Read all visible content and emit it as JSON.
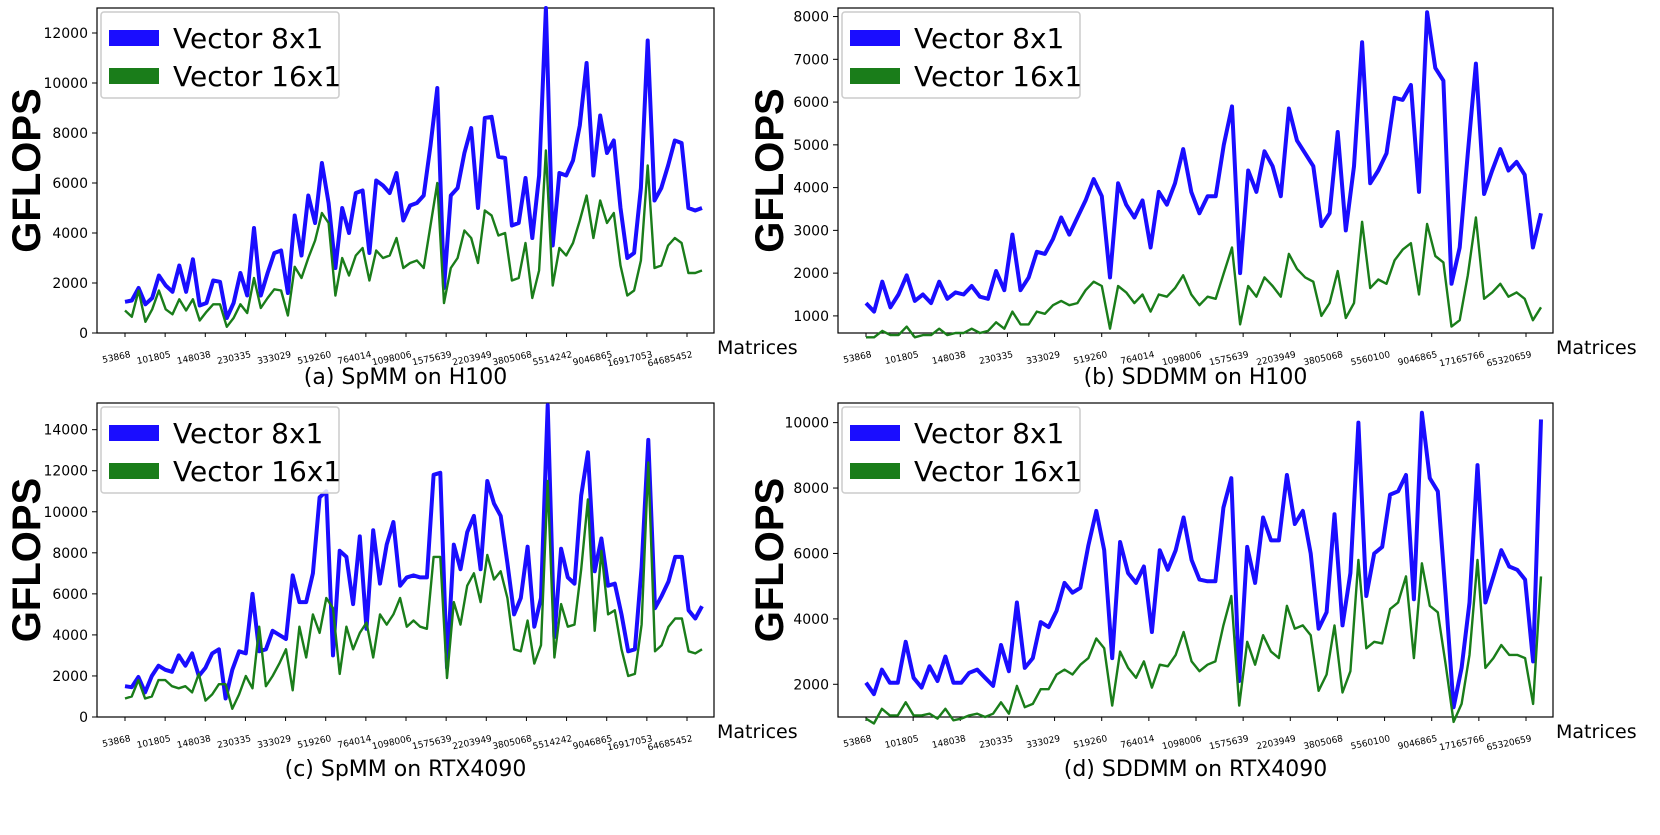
{
  "figure": {
    "ylabel": "GFLOPS",
    "xlabel": "Matrices",
    "colors": {
      "series_a": "#1a0dff",
      "series_b": "#1a7d1a"
    }
  },
  "chart_data": [
    {
      "type": "line",
      "caption": "(a) SpMM on H100",
      "ylim": [
        0,
        13000
      ],
      "yticks": [
        0,
        2000,
        4000,
        6000,
        8000,
        10000,
        12000
      ],
      "xticks": [
        "53868",
        "101805",
        "148038",
        "230335",
        "333029",
        "519260",
        "764014",
        "1098006",
        "1575639",
        "2203949",
        "3805068",
        "5514242",
        "9046865",
        "16917053",
        "64685452"
      ],
      "series": [
        {
          "name": "Vector 8x1",
          "values": [
            1250,
            1300,
            1800,
            1150,
            1400,
            2300,
            1900,
            1650,
            2700,
            1650,
            2950,
            1100,
            1200,
            2100,
            2050,
            600,
            1200,
            2400,
            1500,
            4200,
            1500,
            2400,
            3200,
            3300,
            1600,
            4700,
            3100,
            5500,
            4400,
            6800,
            5200,
            2600,
            5000,
            4000,
            5600,
            5700,
            3200,
            6100,
            5900,
            5600,
            6400,
            4500,
            5100,
            5200,
            5500,
            7500,
            9800,
            1800,
            5500,
            5800,
            7200,
            8200,
            5000,
            8600,
            8650,
            7050,
            7000,
            4300,
            4400,
            6200,
            3800,
            6300,
            13000,
            3500,
            6400,
            6300,
            6900,
            8300,
            10800,
            6300,
            8700,
            7200,
            7700,
            5000,
            3000,
            3200,
            5800,
            11700,
            5300,
            5800,
            6700,
            7700,
            7600,
            5000,
            4900,
            5000
          ]
        },
        {
          "name": "Vector 16x1",
          "values": [
            900,
            650,
            1700,
            450,
            950,
            1700,
            950,
            750,
            1350,
            900,
            1350,
            500,
            850,
            1150,
            1150,
            250,
            600,
            1150,
            800,
            2200,
            1000,
            1400,
            1750,
            1700,
            700,
            2650,
            2200,
            3000,
            3700,
            4800,
            4400,
            1500,
            3000,
            2300,
            3100,
            3400,
            2100,
            3300,
            3000,
            3100,
            3800,
            2600,
            2800,
            2900,
            2600,
            4300,
            6000,
            1200,
            2600,
            3000,
            4100,
            3800,
            2800,
            4900,
            4700,
            3900,
            4000,
            2100,
            2200,
            3600,
            1400,
            2500,
            7300,
            1900,
            3400,
            3100,
            3600,
            4500,
            5500,
            3800,
            5300,
            4400,
            4800,
            2700,
            1500,
            1700,
            2900,
            6700,
            2600,
            2700,
            3500,
            3800,
            3600,
            2400,
            2400,
            2500
          ]
        }
      ]
    },
    {
      "type": "line",
      "caption": "(b) SDDMM on H100",
      "ylim": [
        600,
        8200
      ],
      "yticks": [
        1000,
        2000,
        3000,
        4000,
        5000,
        6000,
        7000,
        8000
      ],
      "xticks": [
        "53868",
        "101805",
        "148038",
        "230335",
        "333029",
        "519260",
        "764014",
        "1098006",
        "1575639",
        "2203949",
        "3805068",
        "5560100",
        "9046865",
        "17165766",
        "65320659"
      ],
      "series": [
        {
          "name": "Vector 8x1",
          "values": [
            1300,
            1100,
            1800,
            1200,
            1500,
            1950,
            1350,
            1500,
            1300,
            1800,
            1400,
            1550,
            1500,
            1700,
            1450,
            1400,
            2050,
            1600,
            2900,
            1600,
            1900,
            2500,
            2450,
            2800,
            3300,
            2900,
            3300,
            3700,
            4200,
            3800,
            1900,
            4100,
            3600,
            3300,
            3700,
            2600,
            3900,
            3600,
            4100,
            4900,
            3900,
            3400,
            3800,
            3800,
            5000,
            5900,
            2000,
            4400,
            3900,
            4850,
            4500,
            3800,
            5850,
            5100,
            4800,
            4500,
            3100,
            3400,
            5300,
            3000,
            4500,
            7400,
            4100,
            4400,
            4800,
            6100,
            6050,
            6400,
            3900,
            8100,
            6800,
            6500,
            1750,
            2600,
            4800,
            6900,
            3850,
            4400,
            4900,
            4400,
            4600,
            4300,
            2600,
            3400
          ]
        },
        {
          "name": "Vector 16x1",
          "values": [
            500,
            500,
            650,
            550,
            550,
            750,
            500,
            550,
            550,
            700,
            550,
            600,
            600,
            700,
            600,
            650,
            850,
            700,
            1100,
            800,
            800,
            1100,
            1050,
            1250,
            1350,
            1250,
            1300,
            1600,
            1800,
            1700,
            700,
            1700,
            1550,
            1300,
            1500,
            1100,
            1500,
            1450,
            1650,
            1950,
            1500,
            1250,
            1450,
            1400,
            2000,
            2600,
            800,
            1700,
            1450,
            1900,
            1700,
            1450,
            2450,
            2100,
            1900,
            1800,
            1000,
            1300,
            2050,
            950,
            1300,
            3200,
            1650,
            1850,
            1750,
            2300,
            2550,
            2700,
            1500,
            3150,
            2400,
            2250,
            750,
            900,
            1950,
            3300,
            1400,
            1550,
            1750,
            1450,
            1550,
            1400,
            900,
            1200
          ]
        }
      ]
    },
    {
      "type": "line",
      "caption": "(c) SpMM on RTX4090",
      "ylim": [
        0,
        15300
      ],
      "yticks": [
        0,
        2000,
        4000,
        6000,
        8000,
        10000,
        12000,
        14000
      ],
      "xticks": [
        "53868",
        "101805",
        "148038",
        "230335",
        "333029",
        "519260",
        "764014",
        "1098006",
        "1575639",
        "2203949",
        "3805068",
        "5514242",
        "9046865",
        "16917053",
        "64685452"
      ],
      "series": [
        {
          "name": "Vector 8x1",
          "values": [
            1500,
            1450,
            1950,
            1200,
            2000,
            2500,
            2300,
            2200,
            3000,
            2500,
            3100,
            2000,
            2400,
            3100,
            3300,
            900,
            2300,
            3200,
            3100,
            6000,
            3200,
            3300,
            4200,
            4000,
            3800,
            6900,
            5600,
            5600,
            7000,
            10700,
            11000,
            3000,
            8100,
            7800,
            5500,
            8800,
            4300,
            9100,
            6500,
            8400,
            9500,
            6400,
            6800,
            6900,
            6800,
            6800,
            11800,
            11900,
            2400,
            8400,
            7200,
            9000,
            9800,
            7200,
            11500,
            10400,
            9800,
            7500,
            5000,
            5800,
            8300,
            4400,
            5800,
            15200,
            3900,
            8200,
            6800,
            6500,
            10800,
            12900,
            7100,
            8700,
            6400,
            6500,
            5000,
            3200,
            3300,
            7300,
            13500,
            5300,
            5900,
            6600,
            7800,
            7800,
            5200,
            4800,
            5400
          ]
        },
        {
          "name": "Vector 16x1",
          "values": [
            900,
            1000,
            1800,
            900,
            1000,
            1800,
            1800,
            1500,
            1400,
            1500,
            1200,
            2100,
            800,
            1100,
            1600,
            1600,
            400,
            1100,
            2000,
            1400,
            4400,
            1500,
            2000,
            2600,
            3300,
            1300,
            4400,
            2900,
            5000,
            4100,
            5800,
            5300,
            2100,
            4400,
            3300,
            4100,
            4600,
            2900,
            5000,
            4500,
            5000,
            5800,
            4400,
            4700,
            4400,
            4300,
            7800,
            7800,
            1900,
            5600,
            4500,
            6400,
            7000,
            5600,
            7900,
            6700,
            7100,
            5800,
            3300,
            3200,
            4700,
            2600,
            3500,
            11500,
            2900,
            5500,
            4400,
            4500,
            7200,
            10600,
            4200,
            8100,
            5000,
            5200,
            3300,
            2000,
            2100,
            4500,
            12400,
            3200,
            3500,
            4400,
            4800,
            4800,
            3200,
            3100,
            3300
          ]
        }
      ]
    },
    {
      "type": "line",
      "caption": "(d) SDDMM on RTX4090",
      "ylim": [
        1000,
        10600
      ],
      "yticks": [
        2000,
        4000,
        6000,
        8000,
        10000
      ],
      "xticks": [
        "53868",
        "101805",
        "148038",
        "230335",
        "333029",
        "519260",
        "764014",
        "1098006",
        "1575639",
        "2203949",
        "3805068",
        "5560100",
        "9046865",
        "17165766",
        "65320659"
      ],
      "series": [
        {
          "name": "Vector 8x1",
          "values": [
            2050,
            1700,
            2450,
            2050,
            2050,
            3300,
            2200,
            1900,
            2550,
            2100,
            2850,
            2050,
            2050,
            2350,
            2450,
            2200,
            1950,
            3200,
            2400,
            4500,
            2500,
            2800,
            3900,
            3750,
            4250,
            5100,
            4800,
            4950,
            6250,
            7300,
            6100,
            2800,
            6350,
            5400,
            5100,
            5600,
            3600,
            6100,
            5500,
            6100,
            7100,
            5800,
            5200,
            5150,
            5150,
            7400,
            8300,
            2100,
            6200,
            5100,
            7100,
            6400,
            6400,
            8400,
            6900,
            7300,
            6000,
            3700,
            4200,
            7200,
            3800,
            5400,
            10000,
            4700,
            6000,
            6200,
            7800,
            7900,
            8400,
            4600,
            10300,
            8300,
            7900,
            4700,
            1300,
            2500,
            4500,
            8700,
            4500,
            5300,
            6100,
            5600,
            5500,
            5200,
            2700,
            10100
          ]
        },
        {
          "name": "Vector 16x1",
          "values": [
            950,
            800,
            1250,
            1050,
            1050,
            1450,
            1050,
            1050,
            1100,
            950,
            1250,
            900,
            950,
            1050,
            1100,
            1000,
            1100,
            1450,
            1100,
            1950,
            1300,
            1400,
            1850,
            1850,
            2300,
            2450,
            2300,
            2600,
            2800,
            3400,
            3100,
            1350,
            3000,
            2500,
            2200,
            2700,
            1900,
            2600,
            2550,
            2900,
            3600,
            2700,
            2400,
            2600,
            2700,
            3800,
            4700,
            1350,
            3300,
            2600,
            3500,
            3000,
            2800,
            4400,
            3700,
            3800,
            3500,
            1800,
            2300,
            3800,
            1750,
            2400,
            5800,
            3100,
            3300,
            3250,
            4300,
            4500,
            5300,
            2800,
            5700,
            4400,
            4200,
            2600,
            850,
            1400,
            2900,
            5800,
            2500,
            2800,
            3200,
            2900,
            2900,
            2800,
            1400,
            5300
          ]
        }
      ]
    }
  ]
}
